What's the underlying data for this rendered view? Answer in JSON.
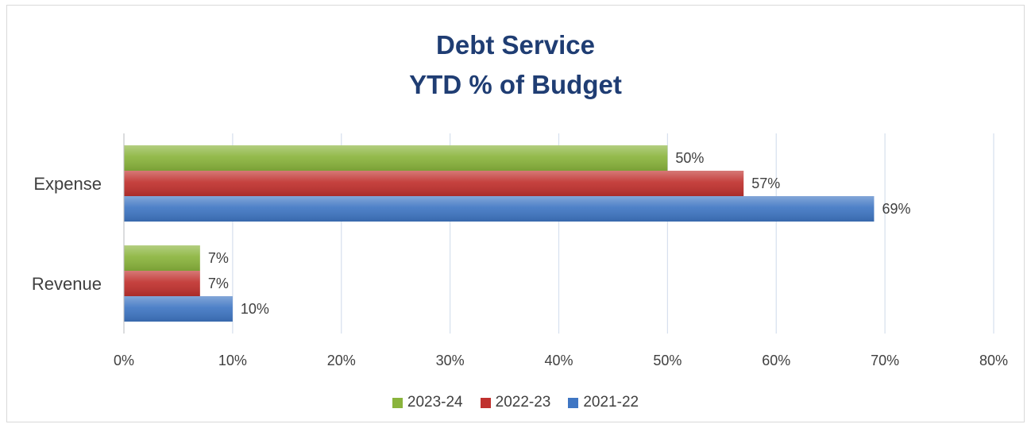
{
  "chart_data": {
    "type": "bar",
    "orientation": "horizontal",
    "title": "Debt Service",
    "subtitle": "YTD % of Budget",
    "categories": [
      "Expense",
      "Revenue"
    ],
    "series": [
      {
        "name": "2023-24",
        "color": "#8ab43c",
        "values": [
          50,
          7
        ],
        "labels": [
          "50%",
          "7%"
        ]
      },
      {
        "name": "2022-23",
        "color": "#c0312e",
        "values": [
          57,
          7
        ],
        "labels": [
          "57%",
          "7%"
        ]
      },
      {
        "name": "2021-22",
        "color": "#3f76c3",
        "values": [
          69,
          10
        ],
        "labels": [
          "69%",
          "10%"
        ]
      }
    ],
    "xlim": [
      0,
      80
    ],
    "x_ticks": [
      "0%",
      "10%",
      "20%",
      "30%",
      "40%",
      "50%",
      "60%",
      "70%",
      "80%"
    ],
    "grid": true,
    "legend": "bottom"
  }
}
